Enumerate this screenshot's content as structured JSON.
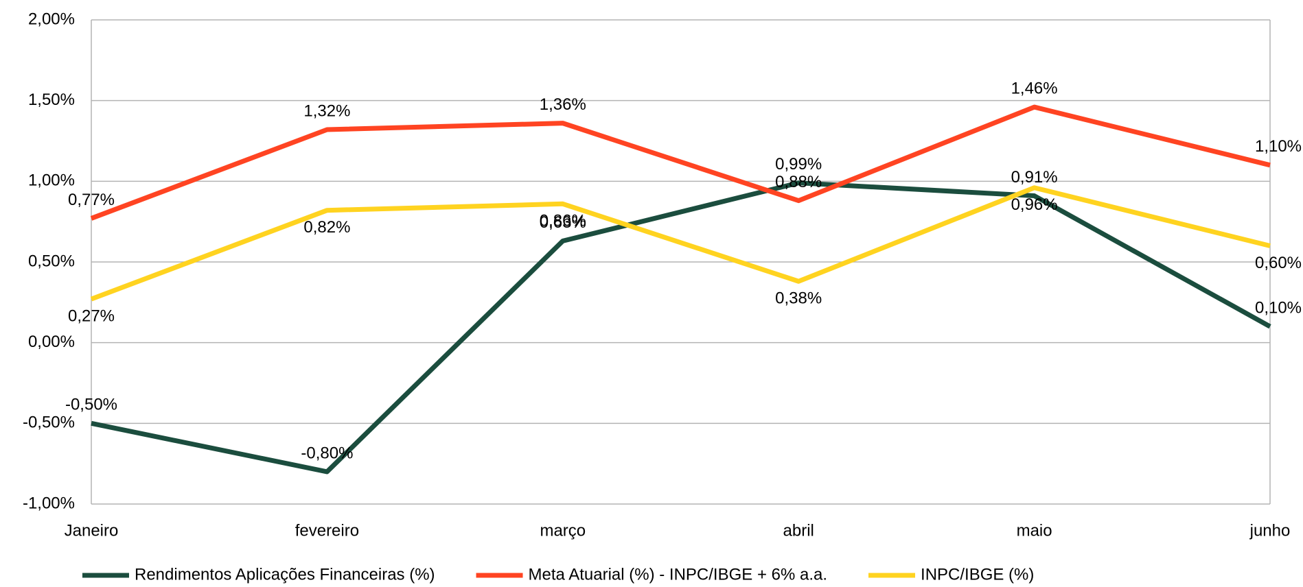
{
  "chart_data": {
    "type": "line",
    "categories": [
      "Janeiro",
      "fevereiro",
      "março",
      "abril",
      "maio",
      "junho"
    ],
    "series": [
      {
        "name": "Rendimentos Aplicações Financeiras (%)",
        "color": "#1b4d3e",
        "values": [
          -0.5,
          -0.8,
          0.63,
          0.99,
          0.91,
          0.1
        ],
        "value_labels": [
          "-0,50%",
          "-0,80%",
          "0,63%",
          "0,99%",
          "0,91%",
          "0,10%"
        ]
      },
      {
        "name": "Meta Atuarial (%) - INPC/IBGE + 6% a.a.",
        "color": "#ff4422",
        "values": [
          0.77,
          1.32,
          1.36,
          0.88,
          1.46,
          1.1
        ],
        "value_labels": [
          "0,77%",
          "1,32%",
          "1,36%",
          "0,88%",
          "1,46%",
          "1,10%"
        ]
      },
      {
        "name": "INPC/IBGE (%)",
        "color": "#ffd320",
        "values": [
          0.27,
          0.82,
          0.86,
          0.38,
          0.96,
          0.6
        ],
        "value_labels": [
          "0,27%",
          "0,82%",
          "0,86%",
          "0,38%",
          "0,96%",
          "0,60%"
        ]
      }
    ],
    "ylim": [
      -1,
      2
    ],
    "yticks": [
      {
        "value": -1,
        "label": "-1,00%"
      },
      {
        "value": -0.5,
        "label": "-0,50%"
      },
      {
        "value": 0,
        "label": "0,00%"
      },
      {
        "value": 0.5,
        "label": "0,50%"
      },
      {
        "value": 1,
        "label": "1,00%"
      },
      {
        "value": 1.5,
        "label": "1,50%"
      },
      {
        "value": 2,
        "label": "2,00%"
      }
    ],
    "grid": true,
    "legend": "bottom"
  }
}
